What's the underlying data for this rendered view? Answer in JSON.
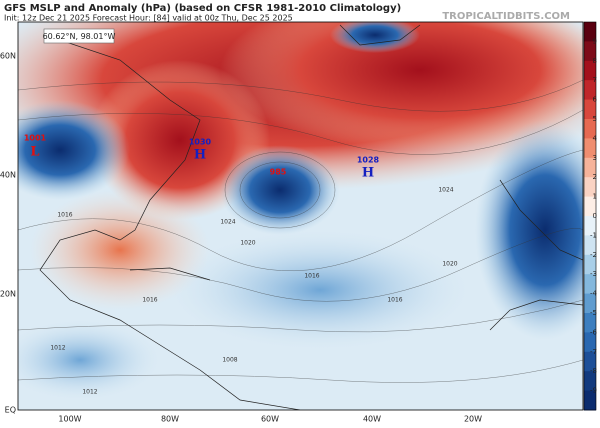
{
  "header": {
    "title": "GFS MSLP and Anomaly (hPa) (based on CFSR 1981-2010 Climatology)",
    "subtitle": "Init: 12z Dec 21 2025   Forecast Hour: [84]   valid at 00z Thu, Dec 25 2025",
    "site": "TROPICALTIDBITS.COM"
  },
  "readout": "60.62°N, 98.01°W",
  "lat_labels": [
    "60N",
    "40N",
    "20N",
    "EQ"
  ],
  "lon_labels": [
    "100W",
    "80W",
    "60W",
    "40W",
    "20W"
  ],
  "colorbar_ticks": [
    "9",
    "8",
    "7",
    "6",
    "5",
    "4",
    "3",
    "2",
    "1",
    "0",
    "-1",
    "-2",
    "-3",
    "-4",
    "-5",
    "-6",
    "-7",
    "-8",
    "-9"
  ],
  "pressure_labels": [
    "1001",
    "L",
    "1030",
    "H",
    "985",
    "1028",
    "H",
    "1024",
    "1024",
    "1020",
    "1020",
    "1016",
    "1016",
    "1016",
    "1012",
    "1008",
    "1012",
    "1016"
  ]
}
